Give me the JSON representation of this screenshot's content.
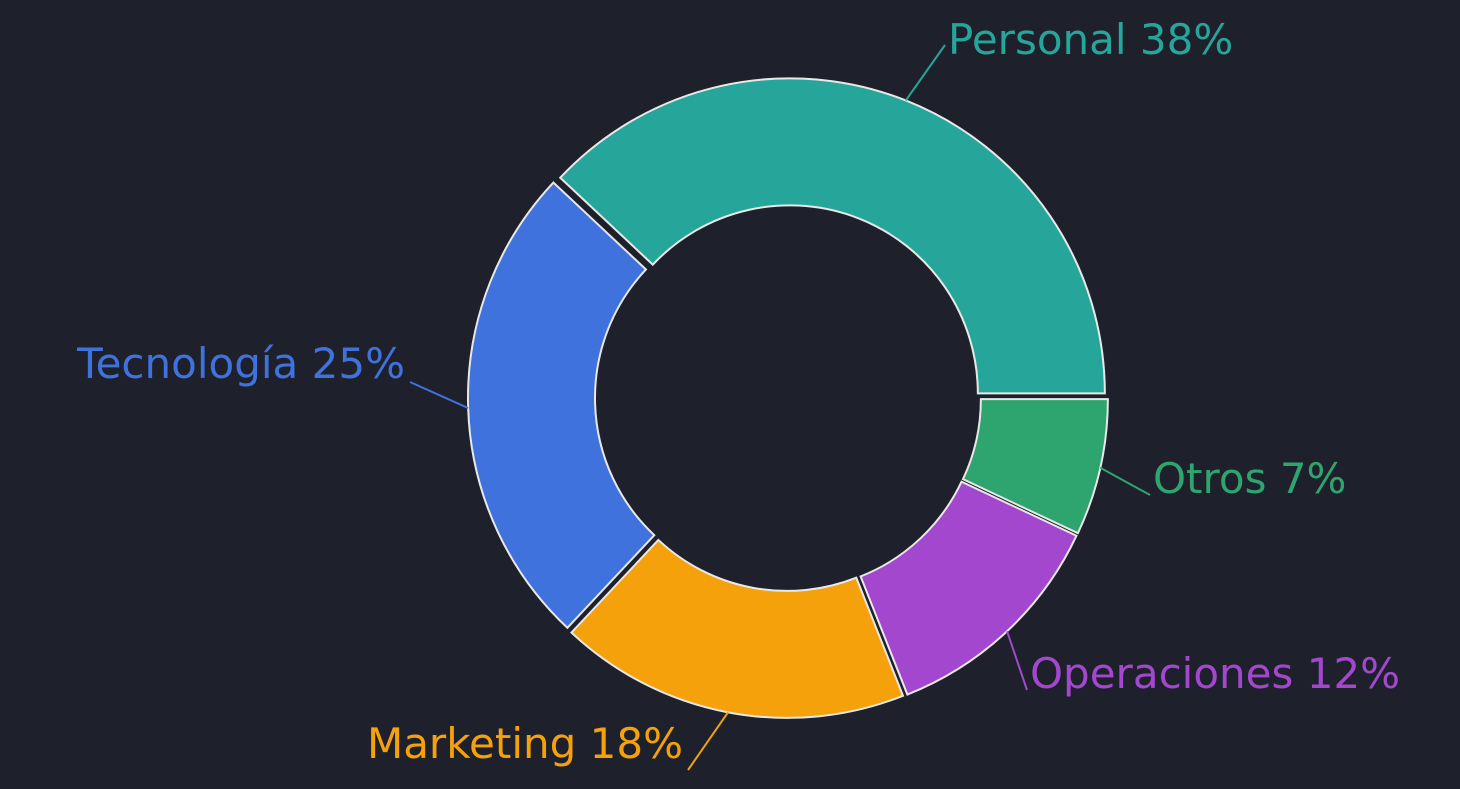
{
  "chart_data": {
    "type": "donut",
    "categories": [
      "Personal",
      "Tecnología",
      "Marketing",
      "Operaciones",
      "Otros"
    ],
    "values": [
      38,
      25,
      18,
      12,
      7
    ],
    "value_labels": [
      "38%",
      "25%",
      "18%",
      "12%",
      "7%"
    ],
    "colors": [
      "#26a69a",
      "#3f72dd",
      "#f4a10c",
      "#a347cf",
      "#2ea56f"
    ]
  }
}
